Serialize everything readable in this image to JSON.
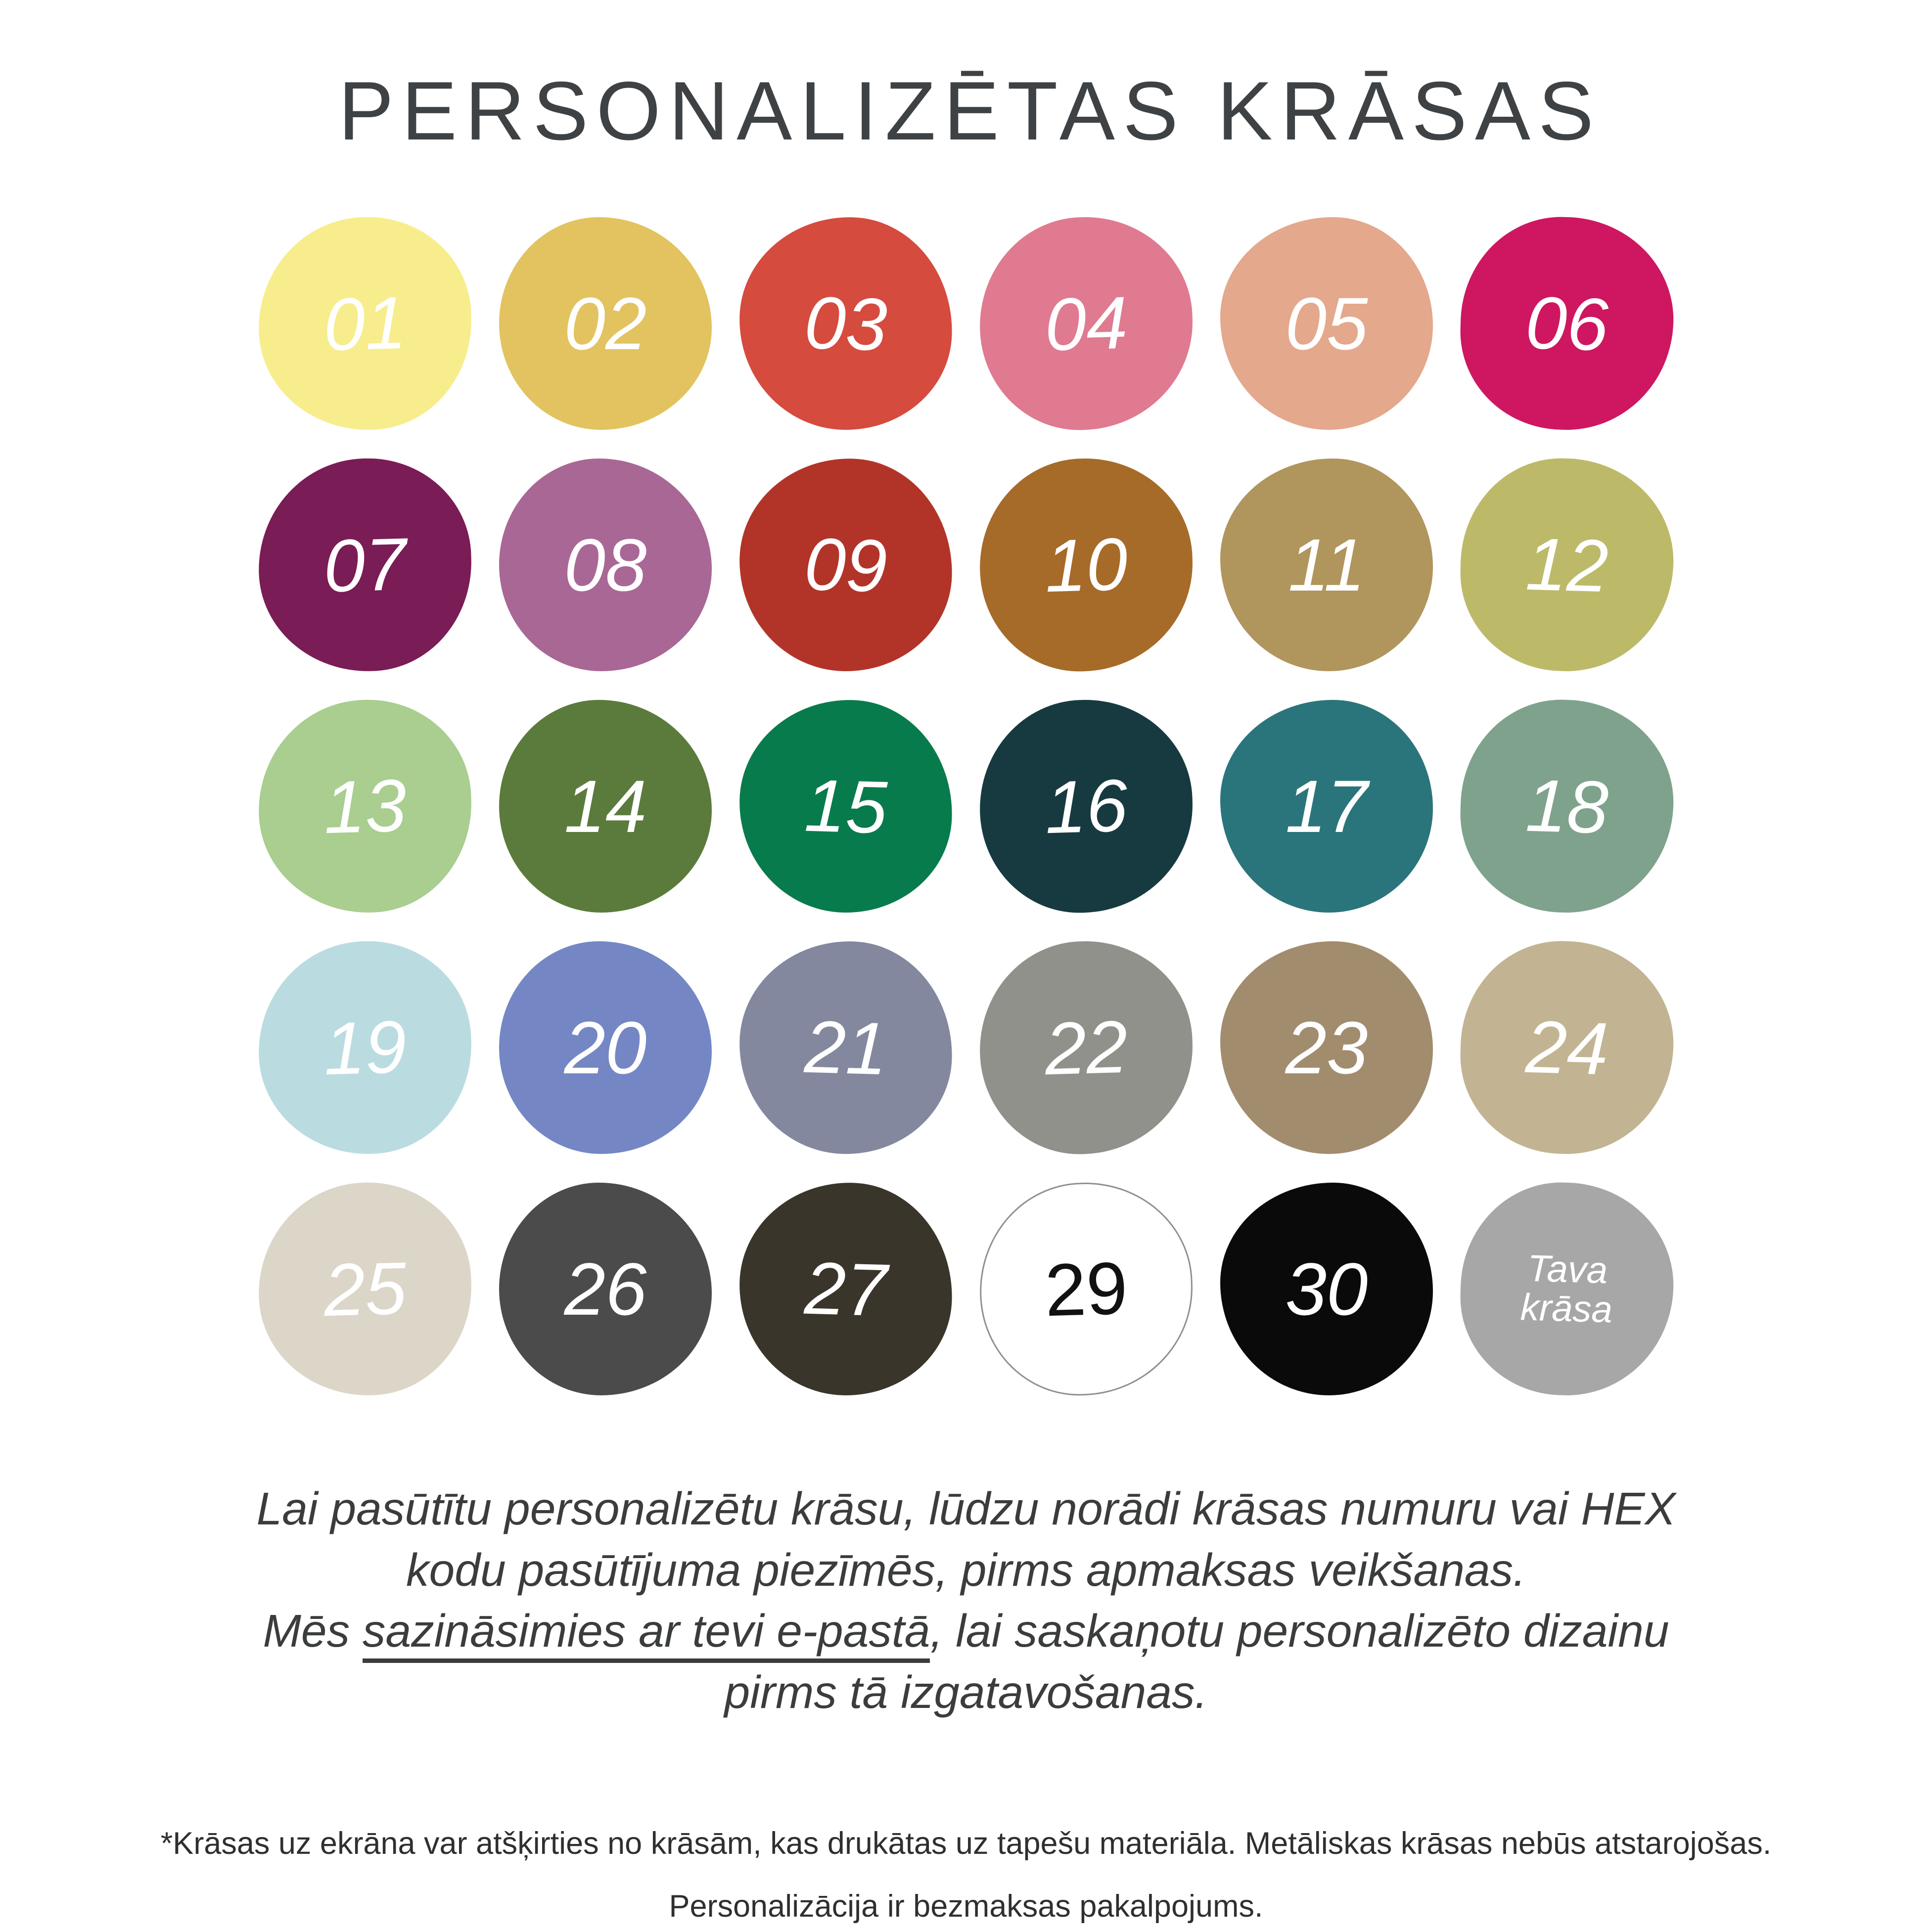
{
  "title": "PERSONALIZĒTAS KRĀSAS",
  "ui_colors": {
    "background": "#ffffff",
    "heading_text": "#3e4244",
    "body_text": "#3a3d3b",
    "footnote_text": "#2e2f2e",
    "default_swatch_label_text": "#ffffff"
  },
  "swatches": [
    {
      "id": "01",
      "label": "01",
      "color": "#F7ED8C"
    },
    {
      "id": "02",
      "label": "02",
      "color": "#E2C360"
    },
    {
      "id": "03",
      "label": "03",
      "color": "#D54B3E"
    },
    {
      "id": "04",
      "label": "04",
      "color": "#DF7A90"
    },
    {
      "id": "05",
      "label": "05",
      "color": "#E4A88D"
    },
    {
      "id": "06",
      "label": "06",
      "color": "#CE1760"
    },
    {
      "id": "07",
      "label": "07",
      "color": "#7A1C55"
    },
    {
      "id": "08",
      "label": "08",
      "color": "#A96795"
    },
    {
      "id": "09",
      "label": "09",
      "color": "#B23429"
    },
    {
      "id": "10",
      "label": "10",
      "color": "#A66B28"
    },
    {
      "id": "11",
      "label": "11",
      "color": "#B0955D"
    },
    {
      "id": "12",
      "label": "12",
      "color": "#BCBA69"
    },
    {
      "id": "13",
      "label": "13",
      "color": "#A9CE90"
    },
    {
      "id": "14",
      "label": "14",
      "color": "#5B7B3C"
    },
    {
      "id": "15",
      "label": "15",
      "color": "#087B4D"
    },
    {
      "id": "16",
      "label": "16",
      "color": "#173A40"
    },
    {
      "id": "17",
      "label": "17",
      "color": "#2A757B"
    },
    {
      "id": "18",
      "label": "18",
      "color": "#7FA28D"
    },
    {
      "id": "19",
      "label": "19",
      "color": "#BADCE1"
    },
    {
      "id": "20",
      "label": "20",
      "color": "#7487C4"
    },
    {
      "id": "21",
      "label": "21",
      "color": "#83889F"
    },
    {
      "id": "22",
      "label": "22",
      "color": "#90918B"
    },
    {
      "id": "23",
      "label": "23",
      "color": "#A28C6E"
    },
    {
      "id": "24",
      "label": "24",
      "color": "#C2B492"
    },
    {
      "id": "25",
      "label": "25",
      "color": "#DCD6C9"
    },
    {
      "id": "26",
      "label": "26",
      "color": "#4B4B4B"
    },
    {
      "id": "27",
      "label": "27",
      "color": "#3A352B"
    },
    {
      "id": "29",
      "label": "29",
      "color": "#FFFFFF",
      "text_color": "#111111",
      "outline_color": "#8F8F8F",
      "upright": true
    },
    {
      "id": "30",
      "label": "30",
      "color": "#0A0A0A"
    },
    {
      "id": "tava-krasa",
      "label": "Tava\nkrāsa",
      "color": "#A7A7A7",
      "small_label": true
    }
  ],
  "description": {
    "line1": "Lai pasūtītu personalizētu krāsu, lūdzu norādi krāsas numuru vai HEX",
    "line2": "kodu pasūtījuma piezīmēs, pirms apmaksas veikšanas.",
    "line3_pre": "Mēs ",
    "line3_underlined": "sazināsimies ar tevi e-pastā",
    "line3_post": ", lai saskaņotu personalizēto dizainu",
    "line4": "pirms tā izgatavošanas."
  },
  "footnote": {
    "line1": "*Krāsas uz ekrāna var atšķirties no krāsām, kas drukātas uz tapešu materiāla. Metāliskas krāsas nebūs atstarojošas.",
    "line2": "Personalizācija ir bezmaksas pakalpojums."
  }
}
